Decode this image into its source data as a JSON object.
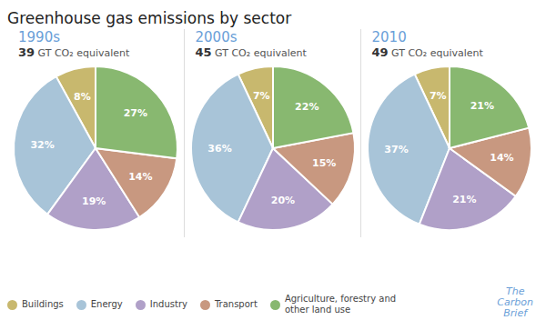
{
  "title": "Greenhouse gas emissions by sector",
  "annotations": [
    "The\nCarbon\nBrief"
  ],
  "chart_data": [
    {
      "type": "pie",
      "title": "1990s",
      "subtitle": "39 GT CO₂ equivalent",
      "categories": [
        "Buildings",
        "Energy",
        "Industry",
        "Transport",
        "Agriculture, forestry and\nother land use"
      ],
      "values": [
        8,
        32,
        19,
        14,
        27
      ],
      "value_labels": [
        "8%",
        "32%",
        "19%",
        "14%",
        "27%"
      ],
      "colors": [
        "#c8b86e",
        "#a8c4d8",
        "#b0a0c8",
        "#c89880",
        "#88b870"
      ],
      "data_labels": true,
      "legend": "bottom"
    },
    {
      "type": "pie",
      "title": "2000s",
      "subtitle": "45 GT CO₂ equivalent",
      "categories": [
        "Buildings",
        "Energy",
        "Industry",
        "Transport",
        "Agriculture, forestry and\nother land use"
      ],
      "values": [
        7,
        36,
        20,
        15,
        22
      ],
      "value_labels": [
        "7%",
        "36%",
        "20%",
        "15%",
        "22%"
      ],
      "colors": [
        "#c8b86e",
        "#a8c4d8",
        "#b0a0c8",
        "#c89880",
        "#88b870"
      ],
      "data_labels": true,
      "legend": "bottom"
    },
    {
      "type": "pie",
      "title": "2010",
      "subtitle": "49 GT CO₂ equivalent",
      "categories": [
        "Buildings",
        "Energy",
        "Industry",
        "Transport",
        "Agriculture, forestry and\nother land use"
      ],
      "values": [
        7,
        37,
        21,
        14,
        21
      ],
      "value_labels": [
        "7%",
        "37%",
        "21%",
        "14%",
        "21%"
      ],
      "colors": [
        "#c8b86e",
        "#a8c4d8",
        "#b0a0c8",
        "#c89880",
        "#88b870"
      ],
      "data_labels": true,
      "legend": "bottom"
    }
  ]
}
